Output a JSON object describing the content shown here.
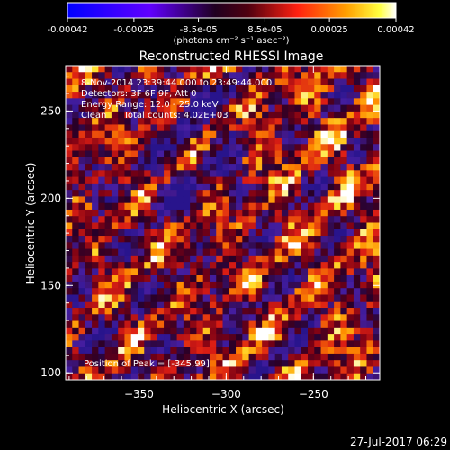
{
  "colors": {
    "background": "#000000",
    "foreground": "#ffffff",
    "colormap": [
      "#0000ff",
      "#8000ff",
      "#200020",
      "#ff2020",
      "#ff8000",
      "#ffff00",
      "#ffffff"
    ],
    "grid_pink": "#a03060"
  },
  "colorbar": {
    "ticks": [
      "-0.00042",
      "-0.00025",
      "-8.5e-05",
      "8.5e-05",
      "0.00025",
      "0.00042"
    ],
    "units": "(photons cm⁻² s⁻¹ asec⁻²)",
    "range": [
      -0.00042,
      0.00042
    ]
  },
  "chart_data": {
    "type": "heatmap",
    "title": "Reconstructed RHESSI Image",
    "xlabel": "Heliocentric X (arcsec)",
    "ylabel": "Heliocentric Y (arcsec)",
    "xlim": [
      -392,
      -212
    ],
    "ylim": [
      96,
      276
    ],
    "xticks": [
      -350,
      -300,
      -250
    ],
    "xtick_labels": [
      "−350",
      "−300",
      "−250"
    ],
    "yticks": [
      100,
      150,
      200,
      250
    ],
    "ytick_labels": [
      "100",
      "150",
      "200",
      "250"
    ],
    "annotations": [
      "8-Nov-2014 23:39:44.000 to 23:49:44.000",
      "Detectors: 3F 6F 9F, Att 0",
      "Energy Range: 12.0 - 25.0 keV",
      "Clean      Total counts: 4.02E+03"
    ],
    "peak_label": "Position of Peak = [-345,99]",
    "grid": false,
    "legend": "none"
  },
  "footer": {
    "timestamp": "27-Jul-2017 06:29"
  }
}
